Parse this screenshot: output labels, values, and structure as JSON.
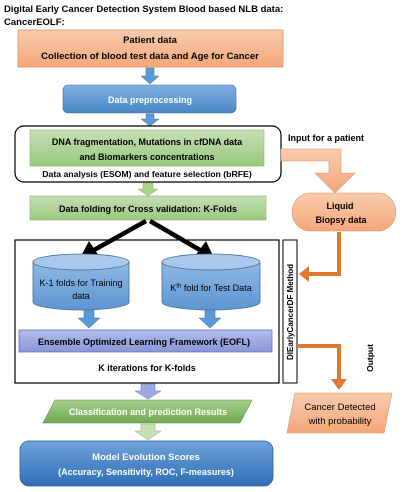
{
  "title": {
    "line1": "Digital Early Cancer Detection System Blood based NLB data:",
    "line2": "CancerEOLF:"
  },
  "patient_box": {
    "line1": "Patient data",
    "line2": "Collection of blood test data and Age for Cancer"
  },
  "preprocessing_box": "Data preprocessing",
  "analysis_box": {
    "line1": "DNA fragmentation, Mutations in cfDNA  data",
    "line2": "and Biomarkers concentrations"
  },
  "analysis_caption": "Data analysis (ESOM) and feature selection (bRFE)",
  "input_label": "Input for a patient",
  "liquid_biopsy": {
    "line1": "Liquid",
    "line2": "Biopsy data"
  },
  "folding_box": "Data folding for Cross validation: K-Folds",
  "training_cylinder": {
    "line1": "K-1 folds for Training",
    "line2": "data"
  },
  "test_cylinder": {
    "prefix": "K",
    "superscript": "th",
    "suffix": " fold for Test Data"
  },
  "eofl_box": "Ensemble Optimized Learning Framework (EOFL)",
  "k_iterations": "K iterations for K-folds",
  "method_label": "DIEarlyCancerDF Method",
  "output_label": "Output",
  "classification_box": "Classification and prediction Results",
  "cancer_detected": {
    "line1": "Cancer Detected",
    "line2": "with probability"
  },
  "scores_box": {
    "line1": "Model Evolution Scores",
    "line2": "(Accuracy, Sensitivity, ROC, F-measures)"
  },
  "colors": {
    "salmon": "#F4B183",
    "green": "#A9D18E",
    "blue": "#5B9BD5",
    "lavender": "#9DA8E0",
    "orange_arrow": "#E07A2E"
  }
}
